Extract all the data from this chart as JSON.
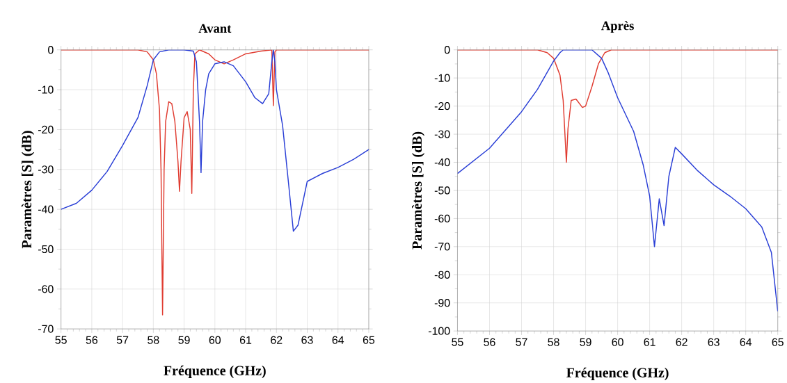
{
  "chart_data": [
    {
      "type": "line",
      "title": "Avant",
      "xlabel": "Fréquence (GHz)",
      "ylabel": "Paramètres [S] (dB)",
      "xlim": [
        55,
        65
      ],
      "ylim": [
        -70,
        0
      ],
      "xticks": [
        55,
        56,
        57,
        58,
        59,
        60,
        61,
        62,
        63,
        64,
        65
      ],
      "yticks": [
        -70,
        -60,
        -50,
        -40,
        -30,
        -20,
        -10,
        0
      ],
      "grid": true,
      "marker": "none",
      "line_style": "solid",
      "series": [
        {
          "color": "#e03c31",
          "x": [
            55,
            57.5,
            57.8,
            58,
            58.1,
            58.2,
            58.25,
            58.3,
            58.35,
            58.4,
            58.5,
            58.6,
            58.7,
            58.8,
            58.85,
            58.9,
            59,
            59.1,
            59.2,
            59.25,
            59.3,
            59.35,
            59.5,
            59.8,
            60,
            60.3,
            60.6,
            61,
            61.5,
            61.85,
            61.9,
            61.95,
            62,
            65
          ],
          "values": [
            0,
            0,
            -0.5,
            -2.5,
            -6,
            -15,
            -30,
            -66.5,
            -30,
            -18,
            -13,
            -13.5,
            -18,
            -28,
            -35.5,
            -28,
            -17,
            -15.5,
            -20,
            -36,
            -10,
            -1,
            0,
            -1,
            -2.5,
            -3.5,
            -2.5,
            -1,
            -0.3,
            0,
            -14,
            -0.5,
            0,
            0
          ]
        },
        {
          "color": "#2a3fd6",
          "x": [
            55,
            55.5,
            56,
            56.5,
            57,
            57.5,
            57.8,
            58,
            58.2,
            58.5,
            59,
            59.3,
            59.4,
            59.5,
            59.55,
            59.6,
            59.7,
            59.8,
            60,
            60.3,
            60.6,
            61,
            61.3,
            61.55,
            61.75,
            61.85,
            61.9,
            61.95,
            62,
            62.2,
            62.4,
            62.55,
            62.7,
            63,
            63.5,
            64,
            64.5,
            65
          ],
          "values": [
            -40,
            -38.5,
            -35.2,
            -30.5,
            -24,
            -17,
            -9,
            -2.5,
            -0.5,
            0,
            0,
            -0.3,
            -3,
            -18,
            -30.8,
            -18,
            -10,
            -6,
            -3.5,
            -3,
            -4,
            -8,
            -12,
            -13.5,
            -11,
            -3,
            0,
            -3,
            -10,
            -19,
            -34,
            -45.5,
            -44,
            -33,
            -31,
            -29.5,
            -27.5,
            -25
          ]
        }
      ]
    },
    {
      "type": "line",
      "title": "Après",
      "xlabel": "Fréquence (GHz)",
      "ylabel": "Paramètres [S] (dB)",
      "xlim": [
        55,
        65
      ],
      "ylim": [
        -100,
        0
      ],
      "xticks": [
        55,
        56,
        57,
        58,
        59,
        60,
        61,
        62,
        63,
        64,
        65
      ],
      "yticks": [
        -100,
        -90,
        -80,
        -70,
        -60,
        -50,
        -40,
        -30,
        -20,
        -10,
        0
      ],
      "grid": true,
      "marker": "none",
      "line_style": "solid",
      "series": [
        {
          "color": "#e03c31",
          "x": [
            55,
            57.5,
            57.8,
            58,
            58.2,
            58.3,
            58.4,
            58.45,
            58.55,
            58.7,
            58.9,
            59,
            59.2,
            59.4,
            59.6,
            59.8,
            65
          ],
          "values": [
            0,
            0,
            -1,
            -3,
            -9,
            -18,
            -40,
            -28,
            -18,
            -17.5,
            -20.5,
            -20,
            -13,
            -5,
            -1,
            0,
            0
          ]
        },
        {
          "color": "#2a3fd6",
          "x": [
            55,
            56,
            57,
            57.5,
            58,
            58.2,
            58.3,
            59.2,
            59.5,
            59.7,
            60,
            60.5,
            60.8,
            61,
            61.15,
            61.3,
            61.45,
            61.6,
            61.8,
            62,
            62.5,
            63,
            63.5,
            64,
            64.5,
            64.8,
            65
          ],
          "values": [
            -44,
            -35,
            -22,
            -14,
            -4,
            -1,
            0,
            0,
            -3,
            -8,
            -17,
            -29,
            -41,
            -52,
            -70,
            -53,
            -62.5,
            -45,
            -34.7,
            -37,
            -43,
            -48,
            -52,
            -56.5,
            -63,
            -72,
            -93
          ]
        }
      ]
    }
  ]
}
